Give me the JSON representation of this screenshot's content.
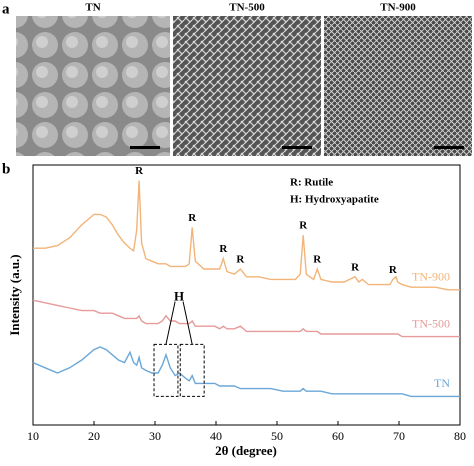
{
  "panel_a": {
    "label": "a",
    "images": [
      "TN",
      "TN-500",
      "TN-900"
    ]
  },
  "chart_data": {
    "type": "line",
    "panel_label": "b",
    "x_label": "2θ (degree)",
    "y_label": "Intensity (a.u.)",
    "notes": [
      "R: Rutile",
      "H: Hydroxyapatite"
    ],
    "peak_label": "R",
    "peak_positions": [
      27.4,
      36.1,
      41.2,
      44,
      54.3,
      56.6,
      62.8,
      69
    ],
    "h_label": "H",
    "h_peaks": [
      31.8,
      36.1
    ],
    "xlim": [
      10,
      80
    ],
    "xticks": [
      10,
      20,
      30,
      40,
      50,
      60,
      70,
      80
    ],
    "ylim": [
      0,
      100
    ],
    "x": [
      10,
      12,
      14,
      16,
      18,
      19,
      20,
      21,
      22,
      23,
      24,
      25,
      25.9,
      26.5,
      27.0,
      27.4,
      27.8,
      28.5,
      29.5,
      30.5,
      31.2,
      31.8,
      32.5,
      33.3,
      34,
      35,
      35.6,
      36.1,
      36.6,
      38,
      39.8,
      40.6,
      41.2,
      41.8,
      43,
      44,
      45,
      47,
      49,
      51,
      53,
      53.8,
      54.3,
      54.8,
      56,
      56.6,
      57.2,
      59,
      61,
      62.8,
      63.4,
      64,
      65,
      67,
      68.5,
      69,
      69.5,
      69.8,
      70.5,
      72,
      74,
      76,
      78,
      80
    ],
    "series": [
      {
        "name": "TN-900",
        "color": "#f3b478",
        "values": [
          68,
          68,
          69,
          72,
          77,
          79,
          81,
          81,
          80,
          77,
          73,
          70,
          68,
          67,
          75,
          94,
          70,
          64,
          63,
          62,
          62,
          62,
          61,
          61,
          61,
          61,
          62,
          76,
          63,
          60,
          60,
          60,
          64,
          59,
          58,
          60,
          57,
          57,
          56,
          56,
          56,
          58,
          73,
          58,
          56,
          60,
          56,
          55,
          55,
          57,
          55,
          56,
          54,
          54,
          54,
          56,
          57,
          55,
          54,
          53,
          53,
          53,
          52,
          52
        ]
      },
      {
        "name": "TN-500",
        "color": "#e79a9a",
        "values": [
          48,
          47,
          46,
          45,
          44,
          44,
          44,
          43,
          43,
          43,
          42,
          41,
          41,
          41,
          41,
          42,
          40,
          39,
          39,
          39,
          40,
          42,
          40,
          40,
          39,
          39,
          39,
          40,
          38,
          38,
          38,
          37,
          38,
          37,
          37,
          38,
          36,
          36,
          36,
          36,
          36,
          36,
          37,
          36,
          36,
          36,
          35,
          35,
          35,
          35,
          35,
          35,
          35,
          35,
          35,
          35,
          35,
          35,
          34,
          34,
          34,
          34,
          34,
          34
        ]
      },
      {
        "name": "TN",
        "color": "#6aa7d8",
        "values": [
          24,
          22,
          20,
          22,
          25,
          27,
          29,
          30,
          29,
          27,
          25,
          24,
          28,
          24,
          23,
          26,
          22,
          21,
          20,
          20,
          23,
          27,
          22,
          19,
          20,
          18,
          17,
          19,
          16,
          16,
          16,
          15,
          15,
          15,
          15,
          14,
          14,
          14,
          14,
          13,
          13,
          13,
          14,
          13,
          13,
          13,
          13,
          12,
          12,
          12,
          12,
          12,
          12,
          12,
          12,
          12,
          12,
          12,
          12,
          11,
          11,
          11,
          11,
          11
        ]
      }
    ]
  }
}
